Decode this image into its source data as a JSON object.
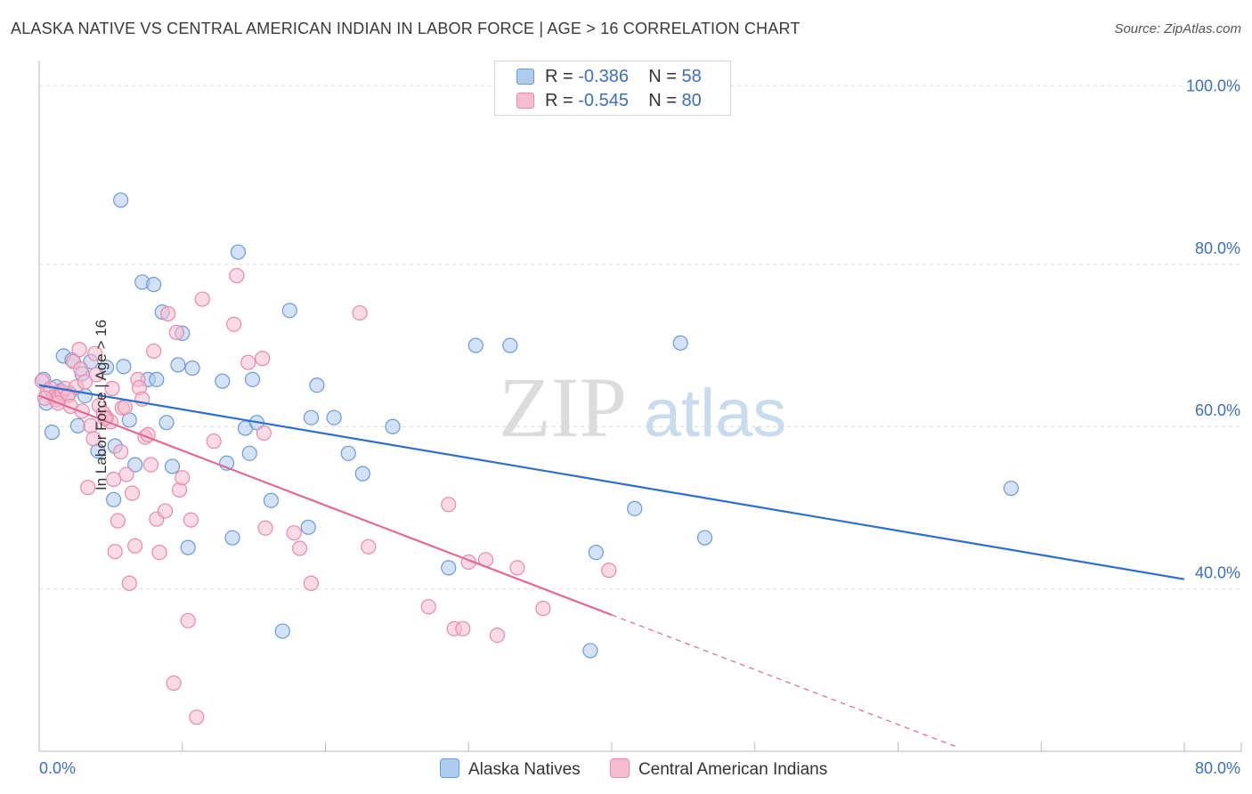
{
  "header": {
    "title": "ALASKA NATIVE VS CENTRAL AMERICAN INDIAN IN LABOR FORCE | AGE > 16 CORRELATION CHART",
    "source": "Source: ZipAtlas.com"
  },
  "legend_top": {
    "rows": [
      {
        "r_label": "R =",
        "r_value": "-0.386",
        "n_label": "N =",
        "n_value": "58"
      },
      {
        "r_label": "R =",
        "r_value": "-0.545",
        "n_label": "N =",
        "n_value": "80"
      }
    ]
  },
  "legend_bottom": {
    "items": [
      "Alaska Natives",
      "Central American Indians"
    ]
  },
  "watermark": {
    "zip": "ZIP",
    "atlas": "atlas"
  },
  "colors": {
    "blue_fill": "#aecbf0",
    "blue_stroke": "#6a9ad8",
    "blue_line": "#2c6fd1",
    "pink_fill": "#f6bcd0",
    "pink_stroke": "#e88aaa",
    "pink_line": "#e46794",
    "grid": "#dddddd",
    "tick_text": "#3a6fc4"
  },
  "chart_data": {
    "type": "scatter",
    "title": "ALASKA NATIVE VS CENTRAL AMERICAN INDIAN IN LABOR FORCE | AGE > 16 CORRELATION CHART",
    "xlabel": "",
    "ylabel": "In Labor Force | Age > 16",
    "xlim": [
      0,
      80
    ],
    "ylim": [
      20,
      104
    ],
    "x_ticks": [
      "0.0%",
      "80.0%"
    ],
    "y_ticks": [
      "40.0%",
      "60.0%",
      "80.0%",
      "100.0%"
    ],
    "y_tick_values": [
      40,
      60,
      80,
      100
    ],
    "grid": true,
    "series": [
      {
        "name": "Alaska Natives",
        "r": -0.386,
        "n": 58,
        "trend": {
          "x0": 0,
          "y0": 65.1,
          "x1": 80,
          "y1": 41.2,
          "dashed_from": null
        },
        "points": [
          [
            0.3,
            65.8
          ],
          [
            0.5,
            62.9
          ],
          [
            0.9,
            59.3
          ],
          [
            1.2,
            64.9
          ],
          [
            1.5,
            64.4
          ],
          [
            1.7,
            68.7
          ],
          [
            2.3,
            68.2
          ],
          [
            2.7,
            60.1
          ],
          [
            3.0,
            66.5
          ],
          [
            3.2,
            63.8
          ],
          [
            3.6,
            68.0
          ],
          [
            4.1,
            57.0
          ],
          [
            4.7,
            67.3
          ],
          [
            5.2,
            51.0
          ],
          [
            5.3,
            57.6
          ],
          [
            5.7,
            87.9
          ],
          [
            5.9,
            67.4
          ],
          [
            6.3,
            60.8
          ],
          [
            6.7,
            55.3
          ],
          [
            7.2,
            77.8
          ],
          [
            7.6,
            65.8
          ],
          [
            8.0,
            77.5
          ],
          [
            8.2,
            65.8
          ],
          [
            8.6,
            74.1
          ],
          [
            8.9,
            60.5
          ],
          [
            9.3,
            55.1
          ],
          [
            9.7,
            67.6
          ],
          [
            10.0,
            71.5
          ],
          [
            10.4,
            45.1
          ],
          [
            10.7,
            67.2
          ],
          [
            12.8,
            65.6
          ],
          [
            13.1,
            55.5
          ],
          [
            13.5,
            46.3
          ],
          [
            13.9,
            81.5
          ],
          [
            14.4,
            59.8
          ],
          [
            14.7,
            56.7
          ],
          [
            14.9,
            65.8
          ],
          [
            15.2,
            60.5
          ],
          [
            16.2,
            50.9
          ],
          [
            17.0,
            34.8
          ],
          [
            17.5,
            74.3
          ],
          [
            18.8,
            47.6
          ],
          [
            19.0,
            61.1
          ],
          [
            19.4,
            65.1
          ],
          [
            20.6,
            61.1
          ],
          [
            21.6,
            56.7
          ],
          [
            22.6,
            54.2
          ],
          [
            24.7,
            60.0
          ],
          [
            28.6,
            42.6
          ],
          [
            30.5,
            70.0
          ],
          [
            32.9,
            70.0
          ],
          [
            38.5,
            32.4
          ],
          [
            38.9,
            44.5
          ],
          [
            41.6,
            49.9
          ],
          [
            44.8,
            70.3
          ],
          [
            46.5,
            46.3
          ],
          [
            67.9,
            52.4
          ],
          [
            2.1,
            64.1
          ]
        ]
      },
      {
        "name": "Central American Indians",
        "r": -0.545,
        "n": 80,
        "trend": {
          "x0": 0,
          "y0": 63.8,
          "x1": 64,
          "y1": 20.6,
          "solid_until_x": 40
        },
        "points": [
          [
            0.2,
            65.6
          ],
          [
            0.6,
            64.3
          ],
          [
            0.8,
            64.7
          ],
          [
            1.0,
            63.6
          ],
          [
            1.2,
            63.3
          ],
          [
            1.4,
            63.7
          ],
          [
            1.6,
            64.2
          ],
          [
            1.8,
            64.7
          ],
          [
            2.0,
            63.8
          ],
          [
            2.2,
            62.5
          ],
          [
            2.4,
            68.0
          ],
          [
            2.6,
            64.9
          ],
          [
            2.8,
            69.5
          ],
          [
            3.0,
            61.9
          ],
          [
            3.2,
            65.5
          ],
          [
            3.4,
            52.5
          ],
          [
            3.6,
            60.1
          ],
          [
            3.8,
            58.5
          ],
          [
            3.9,
            69.0
          ],
          [
            4.0,
            66.4
          ],
          [
            4.2,
            62.6
          ],
          [
            4.5,
            61.6
          ],
          [
            4.7,
            61.1
          ],
          [
            5.0,
            60.6
          ],
          [
            5.1,
            64.7
          ],
          [
            5.2,
            53.5
          ],
          [
            5.3,
            44.6
          ],
          [
            5.5,
            48.4
          ],
          [
            5.7,
            56.9
          ],
          [
            5.8,
            62.3
          ],
          [
            6.0,
            62.4
          ],
          [
            6.1,
            54.1
          ],
          [
            6.3,
            40.7
          ],
          [
            6.5,
            51.8
          ],
          [
            6.7,
            45.3
          ],
          [
            6.9,
            65.8
          ],
          [
            7.0,
            64.8
          ],
          [
            7.2,
            63.4
          ],
          [
            7.4,
            58.7
          ],
          [
            7.6,
            59.0
          ],
          [
            7.8,
            55.3
          ],
          [
            8.0,
            69.3
          ],
          [
            8.2,
            48.6
          ],
          [
            8.4,
            44.5
          ],
          [
            8.8,
            49.6
          ],
          [
            9.0,
            73.9
          ],
          [
            9.4,
            28.4
          ],
          [
            9.6,
            71.6
          ],
          [
            9.8,
            52.2
          ],
          [
            10.0,
            53.7
          ],
          [
            10.4,
            36.1
          ],
          [
            10.6,
            48.5
          ],
          [
            11.0,
            24.2
          ],
          [
            11.4,
            75.7
          ],
          [
            12.2,
            58.2
          ],
          [
            13.6,
            72.6
          ],
          [
            13.8,
            78.6
          ],
          [
            14.6,
            67.9
          ],
          [
            15.6,
            68.4
          ],
          [
            15.7,
            59.2
          ],
          [
            15.8,
            47.5
          ],
          [
            17.8,
            46.9
          ],
          [
            18.2,
            45.0
          ],
          [
            19.0,
            40.7
          ],
          [
            22.4,
            74.0
          ],
          [
            23.0,
            45.2
          ],
          [
            27.2,
            37.8
          ],
          [
            28.6,
            50.4
          ],
          [
            29.0,
            35.1
          ],
          [
            29.6,
            35.1
          ],
          [
            30.0,
            43.3
          ],
          [
            31.2,
            43.6
          ],
          [
            32.0,
            34.3
          ],
          [
            33.4,
            42.6
          ],
          [
            35.2,
            37.6
          ],
          [
            39.8,
            42.3
          ],
          [
            2.9,
            67.1
          ],
          [
            4.6,
            61.0
          ],
          [
            0.4,
            63.5
          ],
          [
            1.3,
            62.9
          ]
        ]
      }
    ]
  }
}
